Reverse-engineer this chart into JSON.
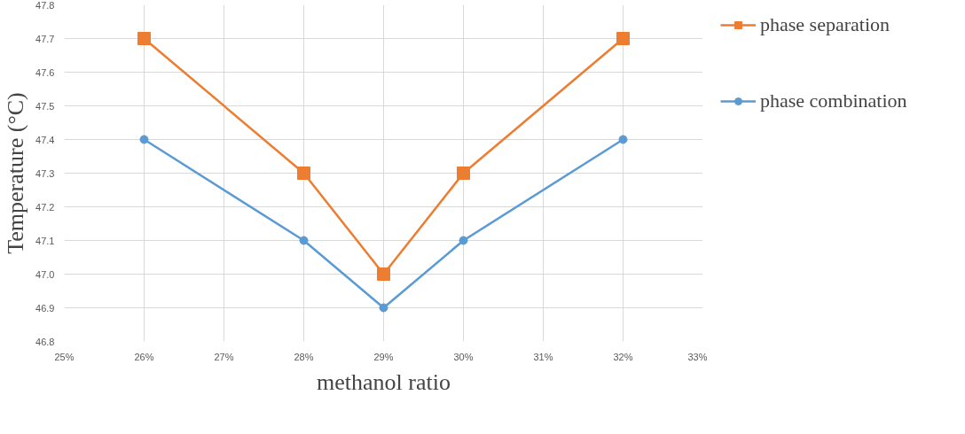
{
  "chart_data": {
    "type": "line",
    "xlabel": "methanol ratio",
    "ylabel": "Temperature (°C)",
    "x": [
      26,
      28,
      29,
      30,
      32
    ],
    "series": [
      {
        "name": "phase separation",
        "color": "#ed7d31",
        "marker": "square",
        "values": [
          47.7,
          47.3,
          47.0,
          47.3,
          47.7
        ]
      },
      {
        "name": "phase combination",
        "color": "#5b9bd5",
        "marker": "circle",
        "values": [
          47.4,
          47.1,
          46.9,
          47.1,
          47.4
        ]
      }
    ],
    "xlim": [
      25,
      33
    ],
    "xticks": [
      {
        "value": 25,
        "label": "25%"
      },
      {
        "value": 26,
        "label": "26%"
      },
      {
        "value": 27,
        "label": "27%"
      },
      {
        "value": 28,
        "label": "28%"
      },
      {
        "value": 29,
        "label": "29%"
      },
      {
        "value": 30,
        "label": "30%"
      },
      {
        "value": 31,
        "label": "31%"
      },
      {
        "value": 32,
        "label": "32%"
      },
      {
        "value": 33,
        "label": "33%"
      }
    ],
    "ylim": [
      46.8,
      47.8
    ],
    "yticks": [
      46.8,
      46.9,
      {
        "value": 47.0,
        "label": "47.0"
      },
      47.1,
      47.2,
      47.3,
      47.4,
      47.5,
      47.6,
      47.7,
      47.8
    ],
    "grid": true,
    "legend": "right",
    "line_style": "solid"
  }
}
